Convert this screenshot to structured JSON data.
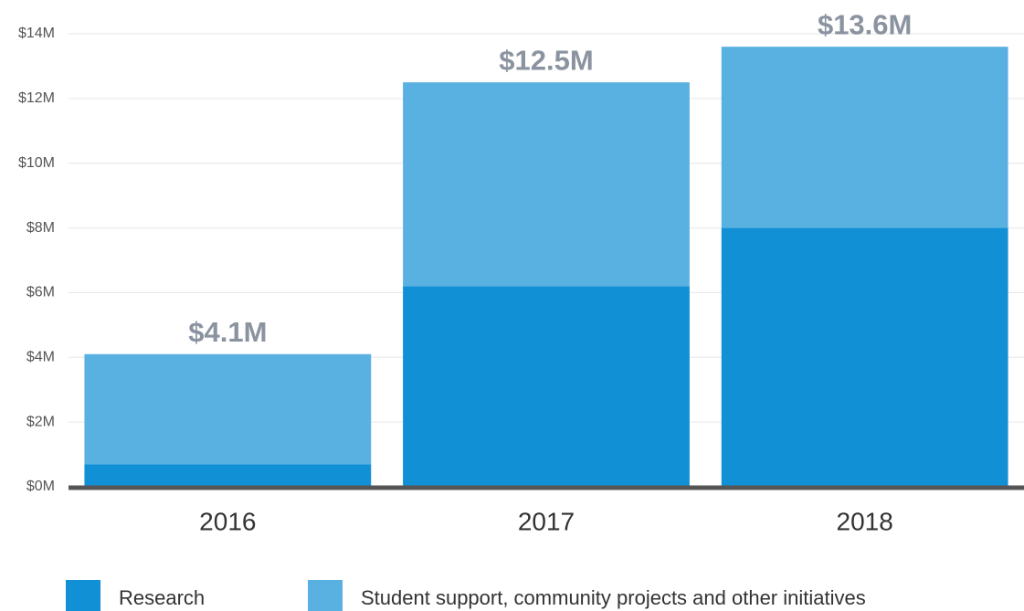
{
  "chart_data": {
    "type": "stacked_bar",
    "categories": [
      "2016",
      "2017",
      "2018"
    ],
    "series": [
      {
        "name": "Research",
        "color": "#1190d6",
        "values": [
          700000,
          6200000,
          8000000
        ]
      },
      {
        "name": "Student support, community projects and other initiatives",
        "color": "#59b1e1",
        "values": [
          3400000,
          6300000,
          5600000
        ]
      }
    ],
    "totals": [
      4100000,
      12500000,
      13600000
    ],
    "total_labels": [
      "$4.1M",
      "$12.5M",
      "$13.6M"
    ],
    "ylim": [
      0,
      14000000
    ],
    "yticks": [
      {
        "value": 0,
        "label": "$0M"
      },
      {
        "value": 2000000,
        "label": "$2M"
      },
      {
        "value": 4000000,
        "label": "$4M"
      },
      {
        "value": 6000000,
        "label": "$6M"
      },
      {
        "value": 8000000,
        "label": "$8M"
      },
      {
        "value": 10000000,
        "label": "$10M"
      },
      {
        "value": 12000000,
        "label": "$12M"
      },
      {
        "value": 14000000,
        "label": "$14M"
      }
    ],
    "grid": true,
    "legend": "bottom"
  }
}
